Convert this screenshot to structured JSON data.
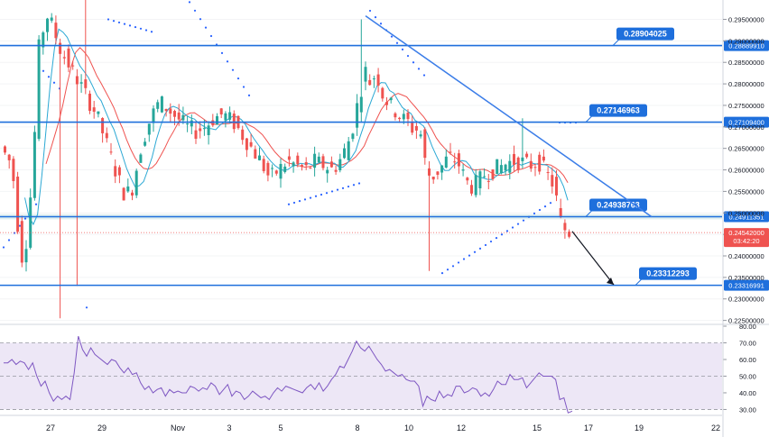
{
  "chart_data": [
    {
      "type": "candlestick",
      "title": "",
      "x_tick_labels": [
        "27",
        "29",
        "Nov",
        "3",
        "5",
        "8",
        "10",
        "12",
        "15",
        "17",
        "19",
        "22"
      ],
      "price_axis": {
        "ylim": [
          0.2245,
          0.2995
        ],
        "tick_labels": [
          "0.29500000",
          "0.29000000",
          "0.28500000",
          "0.28000000",
          "0.27500000",
          "0.27000000",
          "0.26500000",
          "0.26000000",
          "0.25500000",
          "0.25000000",
          "0.24500000",
          "0.24000000",
          "0.23500000",
          "0.23000000",
          "0.22500000"
        ]
      },
      "horizontal_levels": [
        {
          "value": 0.2888991,
          "axis_label": "0.28889910",
          "callout": "0.28904025"
        },
        {
          "value": 0.271094,
          "axis_label": "0.27109400",
          "callout": "0.27146963"
        },
        {
          "value": 0.24911351,
          "axis_label": "0.24911351",
          "callout": "0.24938763"
        },
        {
          "value": 0.23316991,
          "axis_label": "0.23316991",
          "callout": "0.23312293"
        }
      ],
      "current_price": {
        "value": 0.24542,
        "label": "0.24542000",
        "countdown": "03:42:20"
      },
      "trendline": {
        "start_value": 0.2958,
        "end_value": 0.2491
      },
      "projection_arrow": {
        "from_value": 0.2457,
        "to_value": 0.2333
      },
      "colors": {
        "up": "#26a69a",
        "down": "#ef5350",
        "level_line": "#1e6fdc",
        "trendline": "#3b7de8",
        "ma_fast": "#2ba8d4",
        "ma_slow": "#ef5350",
        "sar_dots": "#2962ff",
        "support_zone": "#d4e9ea",
        "current_price": "#ef5350"
      }
    },
    {
      "type": "line",
      "title": "",
      "ylim": [
        27,
        80
      ],
      "tick_labels": [
        "80.00",
        "70.00",
        "60.00",
        "50.00",
        "40.00",
        "30.00"
      ],
      "reference_levels": [
        70,
        50,
        30
      ],
      "series": [
        {
          "values": [
            58,
            58,
            60,
            57,
            59,
            58,
            54,
            58,
            50,
            44,
            47,
            40,
            35,
            38,
            36,
            38,
            36,
            52,
            74,
            66,
            62,
            67,
            63,
            61,
            59,
            57,
            60,
            59,
            55,
            52,
            55,
            51,
            52,
            46,
            42,
            44,
            40,
            42,
            43,
            38,
            42,
            40,
            41,
            40,
            40,
            44,
            43,
            41,
            43,
            42,
            46,
            44,
            39,
            42,
            45,
            38,
            41,
            40,
            36,
            38,
            41,
            39,
            37,
            38,
            36,
            40,
            43,
            41,
            44,
            43,
            42,
            41,
            40,
            43,
            45,
            42,
            46,
            41,
            44,
            48,
            51,
            56,
            55,
            60,
            65,
            71,
            67,
            65,
            68,
            64,
            60,
            57,
            53,
            54,
            52,
            50,
            51,
            48,
            47,
            47,
            44,
            32,
            38,
            36,
            35,
            41,
            37,
            39,
            38,
            44,
            44,
            40,
            41,
            43,
            42,
            38,
            40,
            38,
            42,
            47,
            45,
            45,
            51,
            48,
            48,
            49,
            43,
            46,
            49,
            52,
            50,
            50,
            50,
            48,
            36,
            37,
            28,
            29
          ]
        }
      ],
      "colors": {
        "line": "#7e57c2",
        "band": "#ede7f6"
      }
    }
  ]
}
